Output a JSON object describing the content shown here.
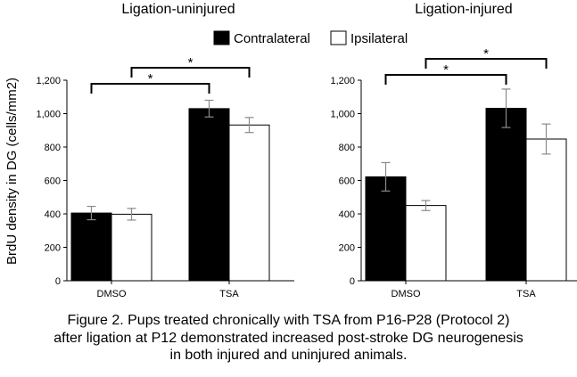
{
  "legend": {
    "series": [
      {
        "name": "Contralateral",
        "color": "#000000"
      },
      {
        "name": "Ipsilateral",
        "color": "#ffffff"
      }
    ]
  },
  "y_axis_label": "BrdU density in DG (cells/mm2)",
  "chart_data": [
    {
      "type": "bar",
      "title": "Ligation-uninjured",
      "categories": [
        "DMSO",
        "TSA"
      ],
      "series": [
        {
          "name": "Contralateral",
          "values": [
            405,
            1030
          ],
          "errors": [
            40,
            50
          ]
        },
        {
          "name": "Ipsilateral",
          "values": [
            398,
            932
          ],
          "errors": [
            35,
            45
          ]
        }
      ],
      "ylabel": "BrdU density in DG (cells/mm2)",
      "ylim": [
        0,
        1200
      ],
      "yticks": [
        0,
        200,
        400,
        600,
        800,
        1000,
        1200
      ],
      "ytick_labels": [
        "0",
        "200",
        "400",
        "600",
        "800",
        "1,000",
        "1,200"
      ],
      "grid": false,
      "significance": [
        {
          "from": {
            "category": 0,
            "series": 0
          },
          "to": {
            "category": 1,
            "series": 0
          },
          "label": "*",
          "level": 1
        },
        {
          "from": {
            "category": 0,
            "series": 1
          },
          "to": {
            "category": 1,
            "series": 1
          },
          "label": "*",
          "level": 2
        }
      ]
    },
    {
      "type": "bar",
      "title": "Ligation-injured",
      "categories": [
        "DMSO",
        "TSA"
      ],
      "series": [
        {
          "name": "Contralateral",
          "values": [
            622,
            1032
          ],
          "errors": [
            85,
            115
          ]
        },
        {
          "name": "Ipsilateral",
          "values": [
            450,
            848
          ],
          "errors": [
            30,
            90
          ]
        }
      ],
      "ylabel": "",
      "ylim": [
        0,
        1200
      ],
      "yticks": [
        0,
        200,
        400,
        600,
        800,
        1000,
        1200
      ],
      "ytick_labels": [
        "0",
        "200",
        "400",
        "600",
        "800",
        "1,000",
        "1,200"
      ],
      "grid": false,
      "significance": [
        {
          "from": {
            "category": 0,
            "series": 0
          },
          "to": {
            "category": 1,
            "series": 0
          },
          "label": "*",
          "level": 1
        },
        {
          "from": {
            "category": 0,
            "series": 1
          },
          "to": {
            "category": 1,
            "series": 1
          },
          "label": "*",
          "level": 2
        }
      ]
    }
  ],
  "caption": {
    "line1": "Figure 2.  Pups treated chronically with TSA from P16-P28 (Protocol 2)",
    "line2": "after ligation at P12 demonstrated increased post-stroke DG neurogenesis",
    "line3": "in both injured and uninjured animals."
  }
}
